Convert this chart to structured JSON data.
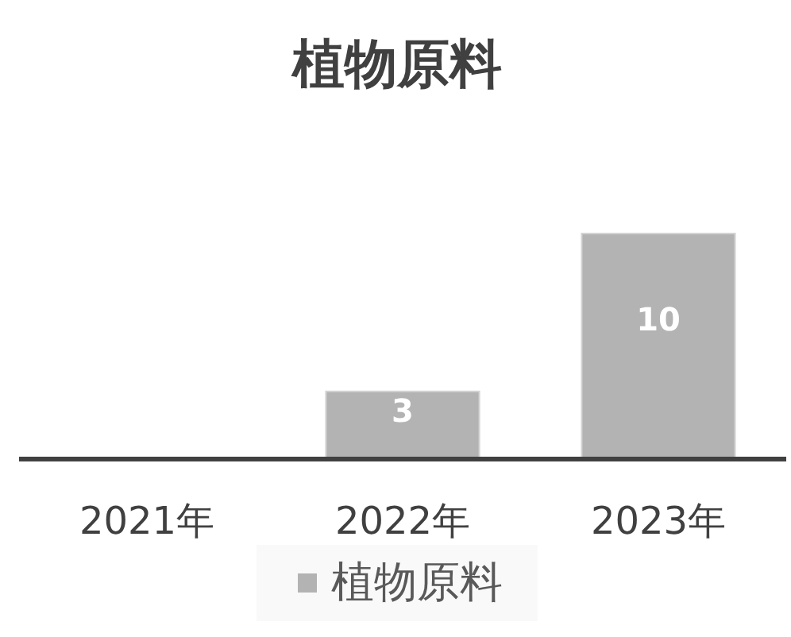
{
  "chart_data": {
    "type": "bar",
    "title": "植物原料",
    "categories": [
      "2021年",
      "2022年",
      "2023年"
    ],
    "series": [
      {
        "name": "植物原料",
        "color": "#b3b3b3",
        "values": [
          null,
          3,
          10
        ]
      }
    ],
    "data_labels": true,
    "legend": "bottom"
  }
}
